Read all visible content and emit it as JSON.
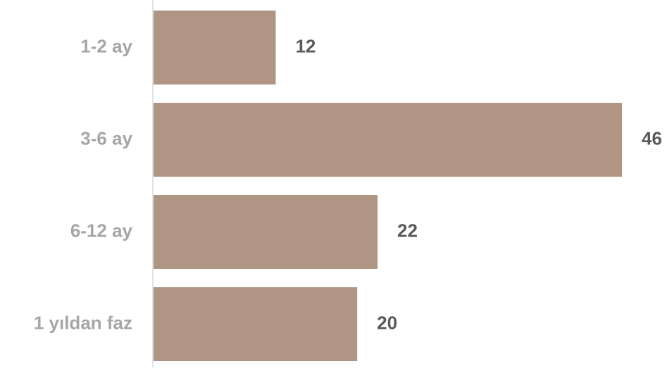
{
  "chart_data": {
    "type": "bar",
    "orientation": "horizontal",
    "categories": [
      "1-2 ay",
      "3-6 ay",
      "6-12 ay",
      "1 yıldan faz"
    ],
    "values": [
      12,
      46,
      22,
      20
    ],
    "data_labels": [
      "12",
      "46",
      "22",
      "20"
    ],
    "title": "",
    "xlabel": "",
    "ylabel": "",
    "xlim": [
      0,
      46
    ],
    "grid": false,
    "legend": "none",
    "colors": {
      "bar": "#b09584",
      "category_label": "#a6a6a6",
      "value_label": "#595959",
      "axis_line": "#d9d9d9"
    }
  }
}
